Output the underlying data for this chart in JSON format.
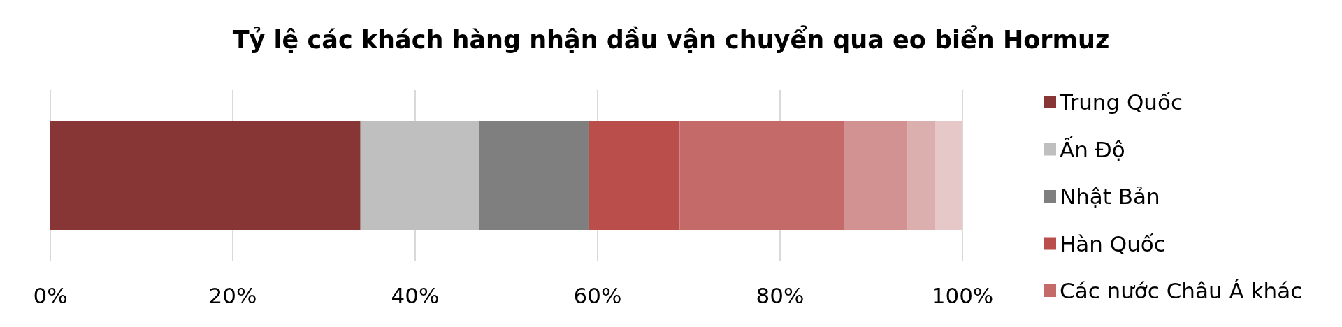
{
  "chart_data": {
    "type": "bar",
    "title": "Tỷ lệ các khách hàng nhận dầu vận chuyển qua eo biển Hormuz",
    "orientation": "horizontal",
    "stacked": true,
    "categories": [
      null
    ],
    "series": [
      {
        "name": "Trung Quốc",
        "color": "#873535",
        "values": [
          34
        ]
      },
      {
        "name": "Ấn Độ",
        "color": "#bfbfbf",
        "values": [
          13
        ]
      },
      {
        "name": "Nhật Bản",
        "color": "#7f7f7f",
        "values": [
          12
        ]
      },
      {
        "name": "Hàn Quốc",
        "color": "#b94e4b",
        "values": [
          10
        ]
      },
      {
        "name": "Các nước Châu Á khác",
        "color": "#c46a68",
        "values": [
          18
        ]
      },
      {
        "color": "#d39292",
        "values": [
          7
        ]
      },
      {
        "color": "#dcafaf",
        "values": [
          3
        ]
      },
      {
        "color": "#e6c8c8",
        "values": [
          3
        ]
      }
    ],
    "xlim": [
      0,
      100
    ],
    "xticks": [
      {
        "value": 0,
        "label": "0%"
      },
      {
        "value": 20,
        "label": "20%"
      },
      {
        "value": 40,
        "label": "40%"
      },
      {
        "value": 60,
        "label": "60%"
      },
      {
        "value": 80,
        "label": "80%"
      },
      {
        "value": 100,
        "label": "100%"
      }
    ],
    "grid": "x",
    "legend": "right",
    "tick_labels": "x"
  }
}
